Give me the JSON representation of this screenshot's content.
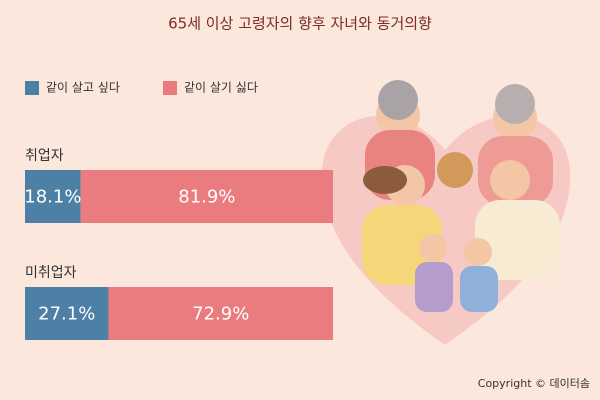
{
  "chart_data": {
    "type": "stacked-bar-horizontal",
    "title": "65세 이상 고령자의 향후 자녀와 동거의향",
    "categories": [
      "취업자",
      "미취업자"
    ],
    "series": [
      {
        "name": "같이 살고 싶다",
        "color": "#4e7fa5",
        "values": [
          18.1,
          27.1
        ],
        "value_labels": [
          "18.1%",
          "27.1%"
        ]
      },
      {
        "name": "같이 살기 싫다",
        "color": "#ea7c80",
        "values": [
          81.9,
          72.9
        ],
        "value_labels": [
          "81.9%",
          "72.9%"
        ]
      }
    ],
    "legend": "top-left",
    "copyright": "Copyright © 데이터솜"
  }
}
